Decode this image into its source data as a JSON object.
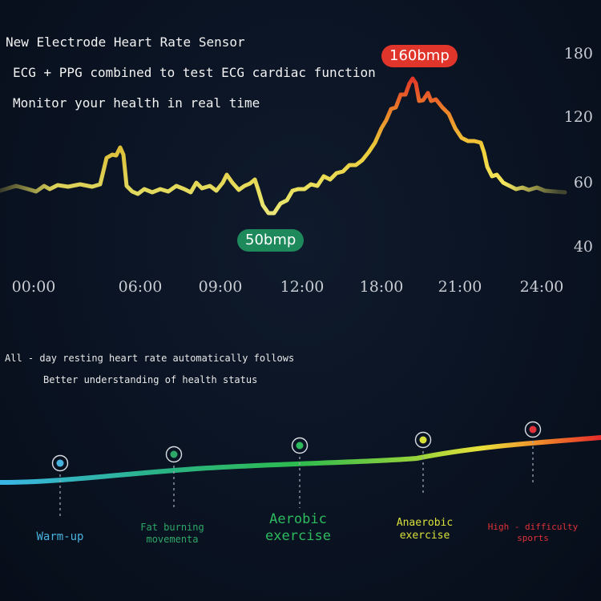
{
  "header": {
    "line1": "New Electrode Heart Rate Sensor",
    "line2": "ECG + PPG combined to test ECG cardiac function",
    "line3": "Monitor your health in real time"
  },
  "chart_data": {
    "type": "line",
    "x_unit": "hours",
    "xlim": [
      0,
      24
    ],
    "ylim": [
      40,
      180
    ],
    "x_ticks": [
      "00:00",
      "06:00",
      "09:00",
      "12:00",
      "18:00",
      "21:00",
      "24:00"
    ],
    "y_ticks": [
      "180",
      "120",
      "60",
      "40"
    ],
    "max_label": "160bmp",
    "min_label": "50bmp",
    "grid": false
  },
  "subtitle": {
    "line1": "All - day resting heart rate automatically follows",
    "line2": "Better understanding of health status"
  },
  "zones": [
    {
      "label": "Warm-up",
      "color": "#49b3e0"
    },
    {
      "label": "Fat burning\nmovementa",
      "color": "#2ea868"
    },
    {
      "label": "Aerobic\nexercise",
      "color": "#2dbb5e"
    },
    {
      "label": "Anaerobic\nexercise",
      "color": "#d9e03a"
    },
    {
      "label": "High - difficulty\nsports",
      "color": "#e0323a"
    }
  ]
}
